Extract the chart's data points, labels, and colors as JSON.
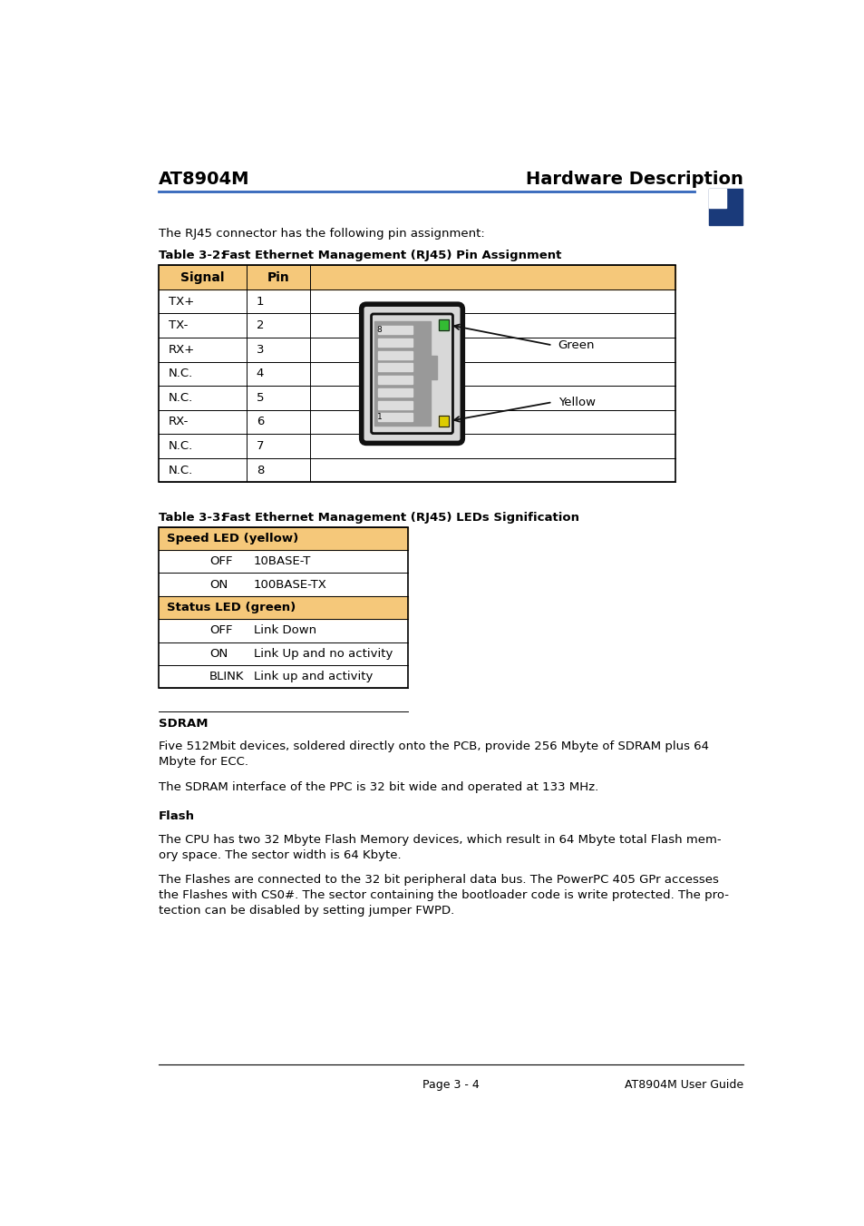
{
  "page_width": 9.54,
  "page_height": 13.51,
  "bg_color": "#ffffff",
  "header_left": "AT8904M",
  "header_right": "Hardware Description",
  "header_line_color": "#3366bb",
  "corner_box_color": "#1a3a7a",
  "intro_text": "The RJ45 connector has the following pin assignment:",
  "table1_caption_bold": "Table 3-2:",
  "table1_caption_rest": "   Fast Ethernet Management (RJ45) Pin Assignment",
  "table1_header": [
    "Signal",
    "Pin"
  ],
  "table1_header_bg": "#f5c87a",
  "table1_rows": [
    [
      "TX+",
      "1"
    ],
    [
      "TX-",
      "2"
    ],
    [
      "RX+",
      "3"
    ],
    [
      "N.C.",
      "4"
    ],
    [
      "N.C.",
      "5"
    ],
    [
      "RX-",
      "6"
    ],
    [
      "N.C.",
      "7"
    ],
    [
      "N.C.",
      "8"
    ]
  ],
  "table1_border_color": "#000000",
  "table2_caption_bold": "Table 3-3:",
  "table2_caption_rest": "   Fast Ethernet Management (RJ45) LEDs Signification",
  "table2_header1": "Speed LED (yellow)",
  "table2_rows1": [
    [
      "OFF",
      "10BASE-T"
    ],
    [
      "ON",
      "100BASE-TX"
    ]
  ],
  "table2_header2": "Status LED (green)",
  "table2_rows2": [
    [
      "OFF",
      "Link Down"
    ],
    [
      "ON",
      "Link Up and no activity"
    ],
    [
      "BLINK",
      "Link up and activity"
    ]
  ],
  "table2_header_bg": "#f5c87a",
  "table2_border_color": "#000000",
  "sdram_title": "SDRAM",
  "sdram_text1": "Five 512Mbit devices, soldered directly onto the PCB, provide 256 Mbyte of SDRAM plus 64\nMbyte for ECC.",
  "sdram_text2": "The SDRAM interface of the PPC is 32 bit wide and operated at 133 MHz.",
  "flash_title": "Flash",
  "flash_text1": "The CPU has two 32 Mbyte Flash Memory devices, which result in 64 Mbyte total Flash mem-\nory space. The sector width is 64 Kbyte.",
  "flash_text2": "The Flashes are connected to the 32 bit peripheral data bus. The PowerPC 405 GPr accesses\nthe Flashes with CS0#. The sector containing the bootloader code is write protected. The pro-\ntection can be disabled by setting jumper FWPD.",
  "footer_line_color": "#000000",
  "footer_left": "Page 3 - 4",
  "footer_right": "AT8904M User Guide",
  "led_green_color": "#33bb33",
  "led_yellow_color": "#ddcc00",
  "arrow_color": "#111111"
}
